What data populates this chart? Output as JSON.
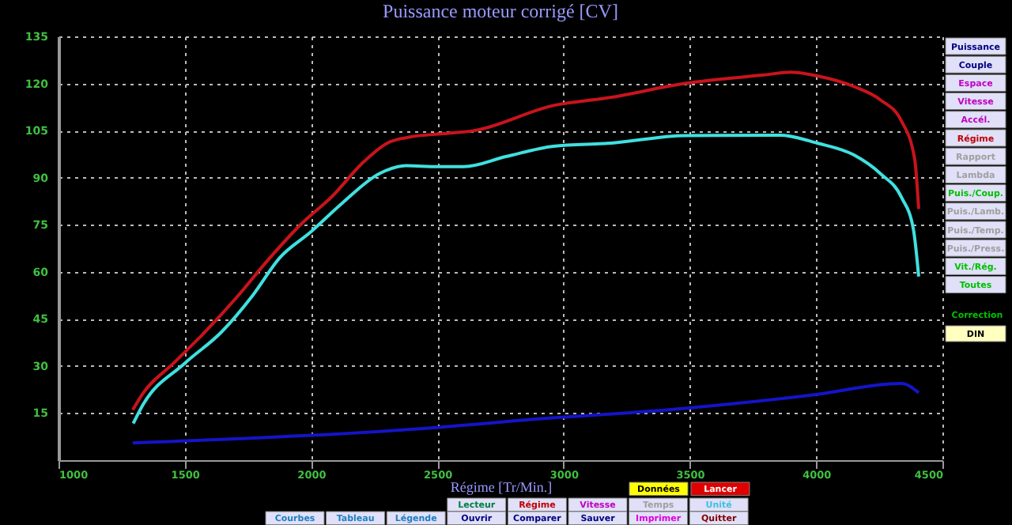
{
  "chart_data": {
    "type": "line",
    "title": "Puissance moteur corrigé [CV]",
    "xlabel": "Régime [Tr/Min.]",
    "xlim": [
      1000,
      4500
    ],
    "xticks": [
      1000,
      1500,
      2000,
      2500,
      3000,
      3500,
      4000,
      4500
    ],
    "ylim": [
      0,
      135
    ],
    "yticks": [
      15,
      30,
      45,
      60,
      75,
      90,
      105,
      120,
      135
    ],
    "grid": true,
    "line_style": "solid",
    "series": [
      {
        "color": "#c8141c",
        "x": [
          1294,
          1332,
          1457,
          1582,
          1707,
          1832,
          1958,
          2083,
          2208,
          2302,
          2396,
          2522,
          2647,
          2960,
          3190,
          3480,
          3793,
          3899,
          4004,
          4150,
          4254,
          4338,
          4390,
          4406
        ],
        "values": [
          16,
          21,
          31,
          41,
          52,
          64,
          75,
          84,
          95,
          101,
          103,
          104,
          105,
          113,
          115.6,
          120,
          122.7,
          123.6,
          122.4,
          119,
          114.8,
          108,
          96,
          80
        ]
      },
      {
        "color": "#40e0e0",
        "x": [
          1296,
          1332,
          1499,
          1645,
          1770,
          1875,
          2000,
          2125,
          2271,
          2376,
          2501,
          2605,
          2772,
          2960,
          3190,
          3482,
          3857,
          4004,
          4150,
          4254,
          4338,
          4385,
          4406
        ],
        "values": [
          11.7,
          17.3,
          30.8,
          40.8,
          52.6,
          64.4,
          72.8,
          82,
          91.3,
          93.8,
          93.5,
          93.5,
          96.7,
          100,
          101,
          103.4,
          103.5,
          101,
          97.2,
          91.3,
          83.7,
          73.6,
          58.5
        ]
      },
      {
        "color": "#1414c8",
        "x": [
          1294,
          2647,
          2772,
          3480,
          3980,
          4338,
          4406
        ],
        "values": [
          5.5,
          11.4,
          12.3,
          16.5,
          20.7,
          24.4,
          21.5
        ]
      }
    ],
    "annotations": [
      "Puissance",
      "Couple",
      "Espace",
      "Vitesse",
      "Accél.",
      "Régime",
      "Rapport",
      "Lambda",
      "Puis./Coup.",
      "Puis./Lamb.",
      "Puis./Temp.",
      "Puis./Press.",
      "Vit./Rég.",
      "Toutes",
      "Correction",
      "DIN",
      "Données",
      "Lancer",
      "Lecteur",
      "Régime",
      "Vitesse",
      "Temps",
      "Unité",
      "Courbes",
      "Tableau",
      "Légende",
      "Ouvrir",
      "Comparer",
      "Sauver",
      "Imprimer",
      "Quitter"
    ]
  }
}
